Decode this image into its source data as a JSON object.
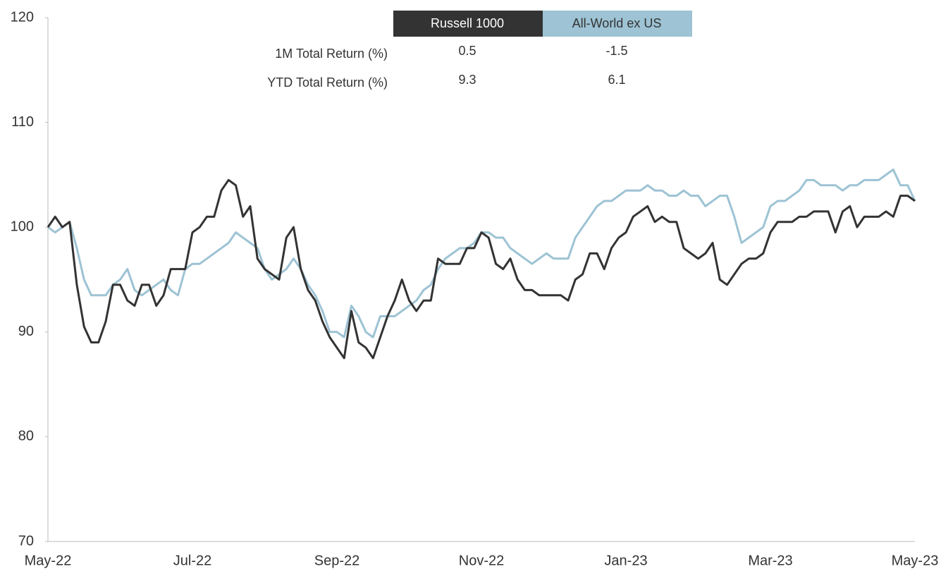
{
  "chart_data": {
    "type": "line",
    "categories": [
      "May-22",
      null,
      null,
      null,
      null,
      null,
      null,
      null,
      null,
      null,
      null,
      null,
      null,
      null,
      null,
      null,
      null,
      null,
      null,
      null,
      "Jul-22",
      null,
      null,
      null,
      null,
      null,
      null,
      null,
      null,
      null,
      null,
      null,
      null,
      null,
      null,
      null,
      null,
      null,
      null,
      null,
      "Sep-22",
      null,
      null,
      null,
      null,
      null,
      null,
      null,
      null,
      null,
      null,
      null,
      null,
      null,
      null,
      null,
      null,
      null,
      null,
      null,
      "Nov-22",
      null,
      null,
      null,
      null,
      null,
      null,
      null,
      null,
      null,
      null,
      null,
      null,
      null,
      null,
      null,
      null,
      null,
      null,
      null,
      "Jan-23",
      null,
      null,
      null,
      null,
      null,
      null,
      null,
      null,
      null,
      null,
      null,
      null,
      null,
      null,
      null,
      null,
      null,
      null,
      null,
      "Mar-23",
      null,
      null,
      null,
      null,
      null,
      null,
      null,
      null,
      null,
      null,
      null,
      null,
      null,
      null,
      null,
      null,
      null,
      null,
      null,
      "May-23"
    ],
    "series": [
      {
        "name": "Russell 1000",
        "color": "#333333",
        "values": [
          100,
          101,
          100,
          100.5,
          94.5,
          90.5,
          89,
          89,
          91,
          94.5,
          94.5,
          93,
          92.5,
          94.5,
          94.5,
          92.5,
          93.5,
          96,
          96,
          96,
          99.5,
          100,
          101,
          101,
          103.5,
          104.5,
          104,
          101,
          102,
          97,
          96,
          95.5,
          95,
          99,
          100,
          96,
          94,
          93,
          91,
          89.5,
          88.5,
          87.5,
          92,
          89,
          88.5,
          87.5,
          89.5,
          91.5,
          93,
          95,
          93,
          92,
          93,
          93,
          97,
          96.5,
          96.5,
          96.5,
          98,
          98,
          99.5,
          99,
          96.5,
          96,
          97,
          95,
          94,
          94,
          93.5,
          93.5,
          93.5,
          93.5,
          93,
          95,
          95.5,
          97.5,
          97.5,
          96,
          98,
          99,
          99.5,
          101,
          101.5,
          102,
          100.5,
          101,
          100.5,
          100.5,
          98,
          97.5,
          97,
          97.5,
          98.5,
          95,
          94.5,
          95.5,
          96.5,
          97,
          97,
          97.5,
          99.5,
          100.5,
          100.5,
          100.5,
          101,
          101,
          101.5,
          101.5,
          101.5,
          99.5,
          101.5,
          102,
          100,
          101,
          101,
          101,
          101.5,
          101,
          103,
          103,
          102.5
        ]
      },
      {
        "name": "All-World ex US",
        "color": "#9dc3d4",
        "values": [
          100,
          99.5,
          100,
          100.5,
          98,
          95,
          93.5,
          93.5,
          93.5,
          94.5,
          95,
          96,
          94,
          93.5,
          94,
          94.5,
          95,
          94,
          93.5,
          96,
          96.5,
          96.5,
          97,
          97.5,
          98,
          98.5,
          99.5,
          99,
          98.5,
          98,
          96,
          95,
          95.5,
          96,
          97,
          96,
          94.5,
          93.5,
          92,
          90,
          90,
          89.5,
          92.5,
          91.5,
          90,
          89.5,
          91.5,
          91.5,
          91.5,
          92,
          92.5,
          93,
          94,
          94.5,
          96,
          97,
          97.5,
          98,
          98,
          98.5,
          99.5,
          99.5,
          99,
          99,
          98,
          97.5,
          97,
          96.5,
          97,
          97.5,
          97,
          97,
          97,
          99,
          100,
          101,
          102,
          102.5,
          102.5,
          103,
          103.5,
          103.5,
          103.5,
          104,
          103.5,
          103.5,
          103,
          103,
          103.5,
          103,
          103,
          102,
          102.5,
          103,
          103,
          101,
          98.5,
          99,
          99.5,
          100,
          102,
          102.5,
          102.5,
          103,
          103.5,
          104.5,
          104.5,
          104,
          104,
          104,
          103.5,
          104,
          104,
          104.5,
          104.5,
          104.5,
          105,
          105.5,
          104,
          104,
          102.5
        ]
      }
    ],
    "ylim": [
      70,
      120
    ],
    "yticks": [
      70,
      80,
      90,
      100,
      110,
      120
    ],
    "grid": false,
    "table": {
      "rows": [
        {
          "label": "1M Total Return (%)",
          "values": [
            0.5,
            -1.5
          ]
        },
        {
          "label": "YTD Total Return (%)",
          "values": [
            9.3,
            6.1
          ]
        }
      ]
    }
  }
}
